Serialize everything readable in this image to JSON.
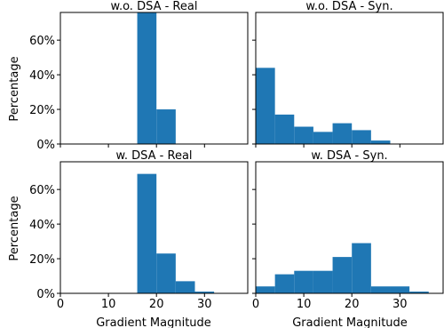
{
  "chart_data": {
    "type": "bar",
    "bar_color": "#1f77b4",
    "xlabel": "Gradient Magnitude",
    "ylabel": "Percentage",
    "xlim": [
      0,
      39
    ],
    "ylim": [
      0,
      76
    ],
    "x_ticks": [
      0,
      10,
      20,
      30
    ],
    "y_ticks": [
      0,
      20,
      40,
      60
    ],
    "y_tick_labels": [
      "0%",
      "20%",
      "40%",
      "60%"
    ],
    "bin_edges": [
      0,
      4,
      8,
      12,
      16,
      20,
      24,
      28,
      32,
      36
    ],
    "panels": [
      {
        "title": "w.o. DSA - Real",
        "values": [
          0,
          0,
          0,
          0,
          80,
          20,
          0,
          0,
          0
        ]
      },
      {
        "title": "w.o. DSA - Syn.",
        "values": [
          44,
          17,
          10,
          7,
          12,
          8,
          2,
          0,
          0
        ]
      },
      {
        "title": "w. DSA - Real",
        "values": [
          0,
          0,
          0,
          0,
          69,
          23,
          7,
          1,
          0
        ]
      },
      {
        "title": "w. DSA - Syn.",
        "values": [
          4,
          11,
          13,
          13,
          21,
          29,
          4,
          4,
          1
        ]
      }
    ]
  }
}
